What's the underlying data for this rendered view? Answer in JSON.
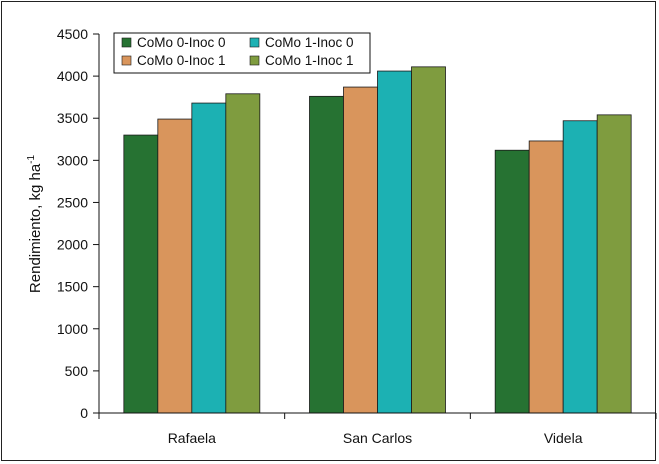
{
  "chart_data": {
    "type": "bar",
    "title": "",
    "xlabel": "",
    "ylabel": "Rendimiento, kg ha",
    "ylabel_superscript": "-1",
    "ylim": [
      0,
      4500
    ],
    "yticks": [
      0,
      500,
      1000,
      1500,
      2000,
      2500,
      3000,
      3500,
      4000,
      4500
    ],
    "grid": false,
    "legend_position": "top-left",
    "categories": [
      "Rafaela",
      "San Carlos",
      "Videla"
    ],
    "series": [
      {
        "name": "CoMo 0-Inoc 0",
        "color": "#267232",
        "values": [
          3300,
          3760,
          3120
        ]
      },
      {
        "name": "CoMo 0-Inoc 1",
        "color": "#d9955c",
        "values": [
          3490,
          3870,
          3230
        ]
      },
      {
        "name": "CoMo 1-Inoc 0",
        "color": "#1cb1b3",
        "values": [
          3680,
          4060,
          3470
        ]
      },
      {
        "name": "CoMo 1-Inoc 1",
        "color": "#7f9c3f",
        "values": [
          3790,
          4110,
          3540
        ]
      }
    ]
  }
}
